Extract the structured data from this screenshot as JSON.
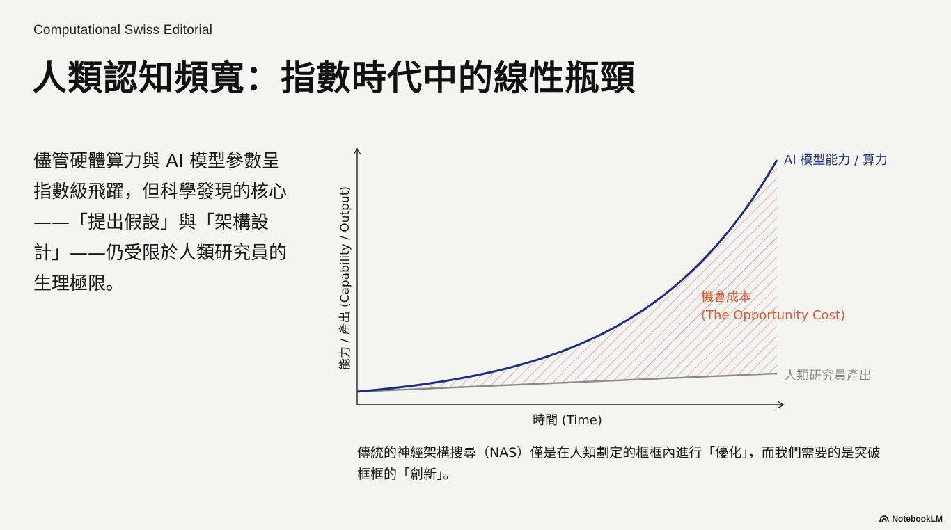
{
  "header": {
    "eyebrow": "Computational Swiss Editorial",
    "title": "人類認知頻寬：指數時代中的線性瓶頸"
  },
  "lead_text": "儘管硬體算力與 AI 模型參數呈指數級飛躍，但科學發現的核心——「提出假設」與「架構設計」——仍受限於人類研究員的生理極限。",
  "caption": "傳統的神經架構搜尋（NAS）僅是在人類劃定的框框內進行「優化」，而我們需要的是突破框框的「創新」。",
  "brand": {
    "name": "NotebookLM",
    "icon": "notebooklm-logo-icon"
  },
  "chart_data": {
    "type": "line",
    "xlabel": "時間 (Time)",
    "ylabel": "能力 / 產出 (Capability / Output)",
    "series": [
      {
        "name": "AI 模型能力 / 算力",
        "shape": "exponential",
        "color": "#1f2f7a"
      },
      {
        "name": "人類研究員產出",
        "shape": "linear",
        "color": "#8a8a8a"
      }
    ],
    "annotation": {
      "line1": "機會成本",
      "line2": "(The Opportunity Cost)",
      "color": "#d4603a"
    },
    "gap_fill": {
      "pattern": "diagonal-hatch",
      "color": "#e0826a"
    },
    "grid": false,
    "ticks": false
  }
}
